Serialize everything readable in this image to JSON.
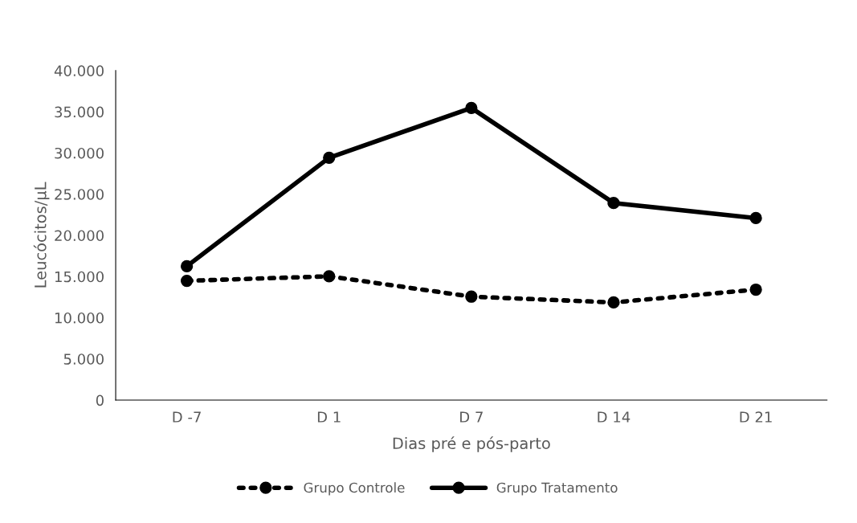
{
  "chart_data": {
    "type": "line",
    "xlabel": "Dias pré e pós-parto",
    "ylabel": "Leucócitos/µL",
    "categories": [
      "D -7",
      "D 1",
      "D 7",
      "D 14",
      "D 21"
    ],
    "series": [
      {
        "name": "Grupo Controle",
        "color": "#000000",
        "line_style": "dotted",
        "values": [
          14480,
          15030,
          12560,
          11860,
          13410
        ]
      },
      {
        "name": "Grupo Tratamento",
        "color": "#000000",
        "line_style": "solid",
        "values": [
          16250,
          29420,
          35460,
          23930,
          22100
        ]
      }
    ],
    "ylim": [
      0,
      40000
    ],
    "yticks": [
      {
        "value": 0,
        "label": "0"
      },
      {
        "value": 5000,
        "label": "5.000"
      },
      {
        "value": 10000,
        "label": "10.000"
      },
      {
        "value": 15000,
        "label": "15.000"
      },
      {
        "value": 20000,
        "label": "20.000"
      },
      {
        "value": 25000,
        "label": "25.000"
      },
      {
        "value": 30000,
        "label": "30.000"
      },
      {
        "value": 35000,
        "label": "35.000"
      },
      {
        "value": 40000,
        "label": "40.000"
      }
    ],
    "marker": "circle",
    "grid": false,
    "legend": "bottom"
  }
}
